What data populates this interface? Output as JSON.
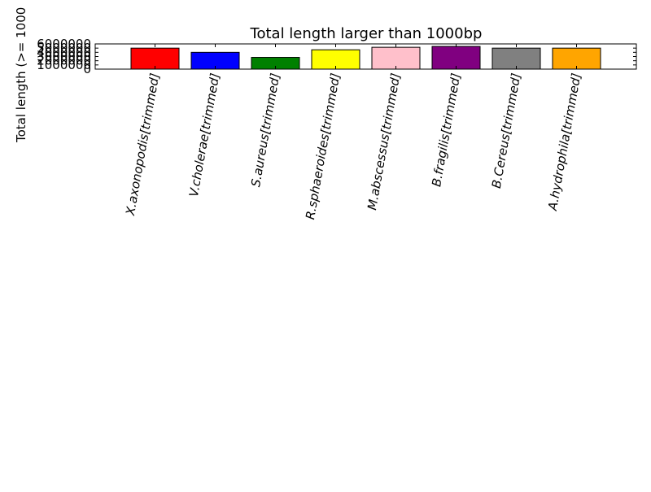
{
  "chart_data": {
    "type": "bar",
    "title": "Total length larger than 1000bp",
    "ylabel": "Total length (>= 1000",
    "xlabel": "",
    "categories": [
      "X.axonopodis[trimmed]",
      "V.cholerae[trimmed]",
      "S.aureus[trimmed]",
      "R.sphaeroides[trimmed]",
      "M.abscessus[trimmed]",
      "B.fragilis[trimmed]",
      "B.Cereus[trimmed]",
      "A.hydrophila[trimmed]"
    ],
    "values": [
      5000000,
      4000000,
      2800000,
      4600000,
      5200000,
      5400000,
      5000000,
      5000000
    ],
    "colors": [
      "#ff0000",
      "#0000ff",
      "#008000",
      "#ffff00",
      "#ffc0cb",
      "#800080",
      "#808080",
      "#ffa500"
    ],
    "ylim": [
      0,
      6000000
    ],
    "yticks": [
      0,
      1000000,
      2000000,
      3000000,
      4000000,
      5000000,
      6000000
    ],
    "ytick_labels": [
      "0",
      "1000000",
      "2000000",
      "3000000",
      "4000000",
      "5000000",
      "6000000"
    ],
    "grid": false,
    "legend": "none"
  }
}
